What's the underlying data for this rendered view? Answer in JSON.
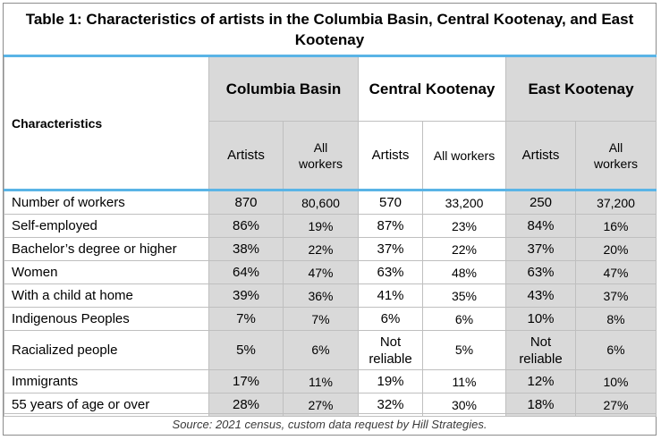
{
  "title": "Table 1: Characteristics of artists in the Columbia Basin, Central Kootenay, and East Kootenay",
  "header": {
    "characteristics": "Characteristics",
    "groups": [
      "Columbia Basin",
      "Central Kootenay",
      "East Kootenay"
    ],
    "subcolumns": [
      "Artists",
      "All workers",
      "Artists",
      "All workers",
      "Artists",
      "All workers"
    ]
  },
  "rows": [
    {
      "label": "Number of workers",
      "values": [
        "870",
        "80,600",
        "570",
        "33,200",
        "250",
        "37,200"
      ]
    },
    {
      "label": "Self-employed",
      "values": [
        "86%",
        "19%",
        "87%",
        "23%",
        "84%",
        "16%"
      ]
    },
    {
      "label": "Bachelor’s degree or higher",
      "values": [
        "38%",
        "22%",
        "37%",
        "22%",
        "37%",
        "20%"
      ]
    },
    {
      "label": "Women",
      "values": [
        "64%",
        "47%",
        "63%",
        "48%",
        "63%",
        "47%"
      ]
    },
    {
      "label": "With a child at home",
      "values": [
        "39%",
        "36%",
        "41%",
        "35%",
        "43%",
        "37%"
      ]
    },
    {
      "label": "Indigenous Peoples",
      "values": [
        "7%",
        "7%",
        "6%",
        "6%",
        "10%",
        "8%"
      ]
    },
    {
      "label": "Racialized people",
      "values": [
        "5%",
        "6%",
        "Not reliable",
        "5%",
        "Not reliable",
        "6%"
      ]
    },
    {
      "label": "Immigrants",
      "values": [
        "17%",
        "11%",
        "19%",
        "11%",
        "12%",
        "10%"
      ]
    },
    {
      "label": "55 years of age or over",
      "values": [
        "28%",
        "27%",
        "32%",
        "30%",
        "18%",
        "27%"
      ]
    }
  ],
  "source": "Source: 2021 census, custom data request by Hill Strategies.",
  "colors": {
    "accent_line": "#5ab4e6",
    "shaded_column": "#d9d9d9",
    "border": "#bfbfbf"
  }
}
